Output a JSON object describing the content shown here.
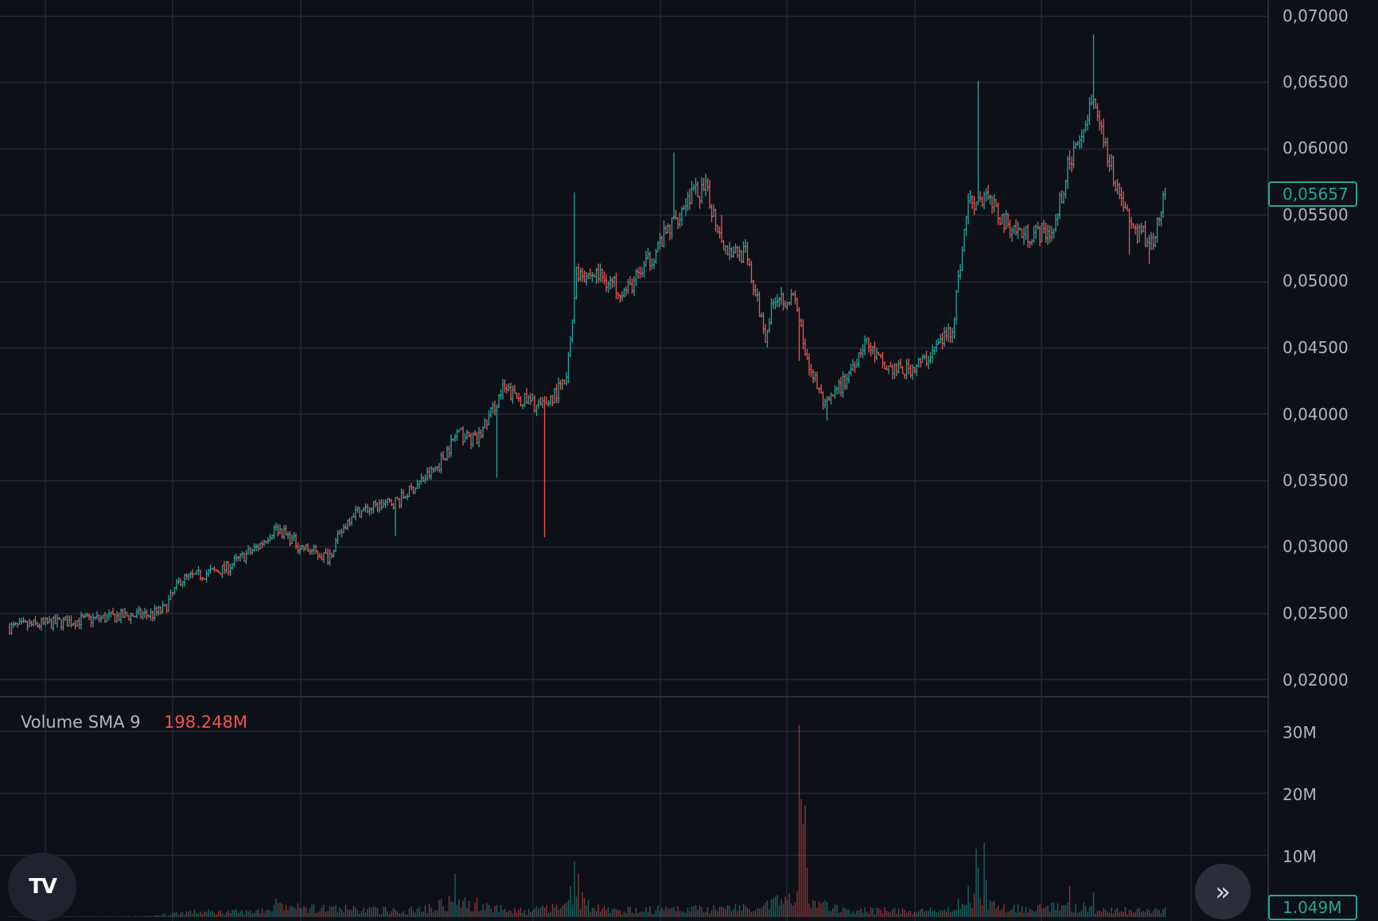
{
  "chart_data": {
    "type": "ohlc",
    "price_axis": {
      "ticks": [
        "0,07000",
        "0,06500",
        "0,06000",
        "0,05500",
        "0,05000",
        "0,04500",
        "0,04000",
        "0,03500",
        "0,03000",
        "0,02500",
        "0,02000"
      ],
      "ylim": [
        0.02,
        0.07
      ],
      "last_price": "0,05657",
      "last_price_value": 0.05657
    },
    "volume_axis": {
      "ticks": [
        "30M",
        "20M",
        "10M"
      ],
      "last_volume": "1.049M"
    },
    "indicator": {
      "name": "Volume SMA 9",
      "value": "198.248M"
    },
    "grid": true,
    "colors": {
      "up": "#26a69a",
      "down": "#ef5350",
      "grid": "#232732",
      "background": "#0d1017",
      "axis_text": "#b2b5be"
    },
    "price_waypoints": [
      [
        0,
        0.0239
      ],
      [
        60,
        0.0248
      ],
      [
        72,
        0.0249
      ],
      [
        78,
        0.0253
      ],
      [
        86,
        0.0275
      ],
      [
        108,
        0.0283
      ],
      [
        125,
        0.03
      ],
      [
        134,
        0.0315
      ],
      [
        146,
        0.03
      ],
      [
        160,
        0.0292
      ],
      [
        172,
        0.0325
      ],
      [
        196,
        0.0335
      ],
      [
        215,
        0.036
      ],
      [
        225,
        0.0385
      ],
      [
        235,
        0.038
      ],
      [
        248,
        0.0418
      ],
      [
        256,
        0.0412
      ],
      [
        268,
        0.0405
      ],
      [
        280,
        0.0425
      ],
      [
        285,
        0.0505
      ],
      [
        296,
        0.0505
      ],
      [
        310,
        0.0492
      ],
      [
        320,
        0.0512
      ],
      [
        332,
        0.054
      ],
      [
        342,
        0.0565
      ],
      [
        350,
        0.0568
      ],
      [
        360,
        0.0525
      ],
      [
        370,
        0.052
      ],
      [
        380,
        0.046
      ],
      [
        385,
        0.049
      ],
      [
        395,
        0.0485
      ],
      [
        400,
        0.0445
      ],
      [
        410,
        0.0405
      ],
      [
        420,
        0.0425
      ],
      [
        430,
        0.0455
      ],
      [
        440,
        0.0435
      ],
      [
        450,
        0.0432
      ],
      [
        460,
        0.044
      ],
      [
        474,
        0.0465
      ],
      [
        482,
        0.056
      ],
      [
        492,
        0.056
      ],
      [
        500,
        0.0545
      ],
      [
        510,
        0.0535
      ],
      [
        525,
        0.0538
      ],
      [
        532,
        0.0585
      ],
      [
        545,
        0.064
      ],
      [
        555,
        0.058
      ],
      [
        565,
        0.0538
      ],
      [
        575,
        0.053
      ],
      [
        581,
        0.0566
      ]
    ],
    "price_spikes": [
      [
        194,
        0.0308,
        "low"
      ],
      [
        245,
        0.0352,
        "low"
      ],
      [
        269,
        0.0307,
        "low"
      ],
      [
        284,
        0.0567,
        "high"
      ],
      [
        334,
        0.0597,
        "high"
      ],
      [
        358,
        0.055,
        "high"
      ],
      [
        397,
        0.044,
        "low"
      ],
      [
        411,
        0.0395,
        "low"
      ],
      [
        487,
        0.0651,
        "high"
      ],
      [
        545,
        0.0686,
        "high"
      ],
      [
        563,
        0.052,
        "low"
      ],
      [
        573,
        0.0513,
        "low"
      ]
    ],
    "volume_waypoints": [
      [
        0,
        0.05
      ],
      [
        70,
        0.1
      ],
      [
        90,
        0.8
      ],
      [
        120,
        0.8
      ],
      [
        134,
        1.5
      ],
      [
        200,
        1.0
      ],
      [
        224,
        2.5
      ],
      [
        260,
        0.8
      ],
      [
        284,
        2.5
      ],
      [
        300,
        1.0
      ],
      [
        370,
        1.5
      ],
      [
        397,
        3.0
      ],
      [
        420,
        1.0
      ],
      [
        470,
        1.0
      ],
      [
        485,
        3.0
      ],
      [
        500,
        1.5
      ],
      [
        540,
        1.5
      ],
      [
        560,
        1.0
      ],
      [
        581,
        1.0
      ]
    ],
    "volume_spikes": [
      [
        134,
        3.0
      ],
      [
        224,
        7.0
      ],
      [
        282,
        5.0
      ],
      [
        284,
        9.0
      ],
      [
        286,
        7.0
      ],
      [
        288,
        4.0
      ],
      [
        397,
        31.0
      ],
      [
        398,
        19.0
      ],
      [
        399,
        15.0
      ],
      [
        400,
        18.0
      ],
      [
        401,
        8.0
      ],
      [
        482,
        5.0
      ],
      [
        486,
        11.0
      ],
      [
        487,
        8.0
      ],
      [
        490,
        12.0
      ],
      [
        491,
        6.0
      ],
      [
        533,
        5.0
      ],
      [
        545,
        4.0
      ]
    ],
    "bar_count": 582
  }
}
